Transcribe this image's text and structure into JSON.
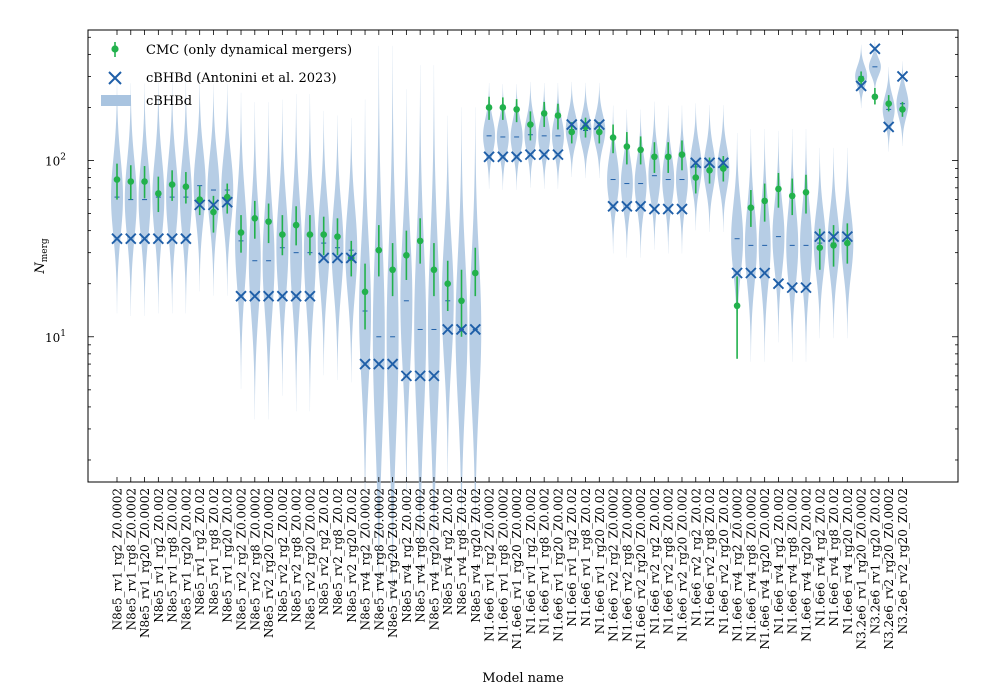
{
  "chart_data": {
    "type": "scatter",
    "xlabel": "Model name",
    "ylabel": "N",
    "ylabel_sub": "merg",
    "yscale": "log",
    "ylim": [
      1.5,
      550
    ],
    "yticks": [
      {
        "value": 10,
        "label": "10",
        "exp": "1"
      },
      {
        "value": 100,
        "label": "10",
        "exp": "2"
      }
    ],
    "legend": {
      "position": "top-left",
      "entries": [
        {
          "label": "CMC (only dynamical mergers)",
          "marker": "errorbar-dot",
          "color": "#22b14c"
        },
        {
          "label": "cBHBd (Antonini et al. 2023)",
          "marker": "x",
          "color": "#1f5fa8"
        },
        {
          "label": "cBHBd",
          "marker": "violin",
          "color": "#a9c4e0"
        }
      ]
    },
    "colors": {
      "cmc": "#22b14c",
      "cbhbd": "#1f5fa8",
      "violin": "#a9c4e0"
    },
    "categories": [
      "N8e5_rv1_rg2_Z0.0002",
      "N8e5_rv1_rg8_Z0.0002",
      "N8e5_rv1_rg20_Z0.0002",
      "N8e5_rv1_rg2_Z0.002",
      "N8e5_rv1_rg8_Z0.002",
      "N8e5_rv1_rg20_Z0.002",
      "N8e5_rv1_rg2_Z0.02",
      "N8e5_rv1_rg8_Z0.02",
      "N8e5_rv1_rg20_Z0.02",
      "N8e5_rv2_rg2_Z0.0002",
      "N8e5_rv2_rg8_Z0.0002",
      "N8e5_rv2_rg20_Z0.0002",
      "N8e5_rv2_rg2_Z0.002",
      "N8e5_rv2_rg8_Z0.002",
      "N8e5_rv2_rg20_Z0.002",
      "N8e5_rv2_rg2_Z0.02",
      "N8e5_rv2_rg8_Z0.02",
      "N8e5_rv2_rg20_Z0.02",
      "N8e5_rv4_rg2_Z0.0002",
      "N8e5_rv4_rg8_Z0.0002",
      "N8e5_rv4_rg20_Z0.0002",
      "N8e5_rv4_rg2_Z0.002",
      "N8e5_rv4_rg8_Z0.002",
      "N8e5_rv4_rg20_Z0.002",
      "N8e5_rv4_rg2_Z0.02",
      "N8e5_rv4_rg8_Z0.02",
      "N8e5_rv4_rg20_Z0.02",
      "N1.6e6_rv1_rg2_Z0.0002",
      "N1.6e6_rv1_rg8_Z0.0002",
      "N1.6e6_rv1_rg20_Z0.0002",
      "N1.6e6_rv1_rg2_Z0.002",
      "N1.6e6_rv1_rg8_Z0.002",
      "N1.6e6_rv1_rg20_Z0.002",
      "N1.6e6_rv1_rg2_Z0.02",
      "N1.6e6_rv1_rg8_Z0.02",
      "N1.6e6_rv1_rg20_Z0.02",
      "N1.6e6_rv2_rg2_Z0.0002",
      "N1.6e6_rv2_rg8_Z0.0002",
      "N1.6e6_rv2_rg20_Z0.0002",
      "N1.6e6_rv2_rg2_Z0.002",
      "N1.6e6_rv2_rg8_Z0.002",
      "N1.6e6_rv2_rg20_Z0.002",
      "N1.6e6_rv2_rg2_Z0.02",
      "N1.6e6_rv2_rg8_Z0.02",
      "N1.6e6_rv2_rg20_Z0.02",
      "N1.6e6_rv4_rg2_Z0.0002",
      "N1.6e6_rv4_rg8_Z0.0002",
      "N1.6e6_rv4_rg20_Z0.0002",
      "N1.6e6_rv4_rg2_Z0.002",
      "N1.6e6_rv4_rg8_Z0.002",
      "N1.6e6_rv4_rg20_Z0.002",
      "N1.6e6_rv4_rg2_Z0.02",
      "N1.6e6_rv4_rg8_Z0.02",
      "N1.6e6_rv4_rg20_Z0.02",
      "N3.2e6_rv1_rg20_Z0.0002",
      "N3.2e6_rv1_rg20_Z0.02",
      "N3.2e6_rv2_rg20_Z0.0002",
      "N3.2e6_rv2_rg20_Z0.02"
    ],
    "series": [
      {
        "name": "CMC (only dynamical mergers)",
        "values": [
          78,
          76,
          76,
          65,
          73,
          71,
          60,
          51,
          62,
          39,
          47,
          45,
          38,
          43,
          38,
          38,
          37,
          28,
          18,
          31,
          24,
          29,
          35,
          24,
          20,
          16,
          23,
          200,
          200,
          195,
          160,
          185,
          180,
          145,
          155,
          145,
          135,
          120,
          115,
          105,
          105,
          108,
          80,
          88,
          90,
          15,
          54,
          59,
          69,
          63,
          66,
          32,
          33,
          34,
          290,
          230,
          210,
          195
        ],
        "err_low": [
          18,
          16,
          15,
          14,
          14,
          14,
          11,
          12,
          12,
          9,
          11,
          11,
          9,
          10,
          9,
          9,
          8,
          6,
          7,
          9,
          7,
          8,
          9,
          7,
          6,
          6,
          6,
          30,
          30,
          30,
          30,
          30,
          30,
          20,
          20,
          20,
          25,
          25,
          20,
          20,
          20,
          20,
          15,
          14,
          14,
          7.5,
          12,
          14,
          15,
          14,
          16,
          8,
          8,
          8,
          22,
          22,
          20,
          18
        ],
        "err_high": [
          18,
          18,
          17,
          16,
          15,
          15,
          12,
          12,
          12,
          10,
          12,
          12,
          11,
          12,
          11,
          10,
          10,
          7,
          8,
          12,
          10,
          11,
          12,
          10,
          7,
          8,
          9,
          30,
          28,
          28,
          30,
          30,
          30,
          20,
          20,
          20,
          25,
          25,
          22,
          22,
          22,
          22,
          18,
          16,
          16,
          7,
          14,
          15,
          16,
          16,
          17,
          9,
          10,
          10,
          30,
          28,
          25,
          20
        ]
      },
      {
        "name": "cBHBd (Antonini et al. 2023)",
        "values": [
          36,
          36,
          36,
          36,
          36,
          36,
          56,
          56,
          58,
          17,
          17,
          17,
          17,
          17,
          17,
          28,
          28,
          28,
          7,
          7,
          7,
          6,
          6,
          6,
          11,
          11,
          11,
          105,
          105,
          105,
          108,
          108,
          108,
          160,
          160,
          160,
          55,
          55,
          55,
          53,
          53,
          53,
          97,
          97,
          97,
          23,
          23,
          23,
          20,
          19,
          19,
          37,
          37,
          37,
          265,
          430,
          155,
          300
        ]
      },
      {
        "name": "cBHBd",
        "median": [
          62,
          60,
          60,
          62,
          62,
          62,
          72,
          68,
          68,
          35,
          27,
          27,
          32,
          30,
          30,
          34,
          32,
          31,
          14,
          10,
          10,
          16,
          11,
          11,
          16,
          11,
          11,
          138,
          136,
          136,
          140,
          138,
          138,
          150,
          148,
          148,
          78,
          74,
          74,
          82,
          78,
          78,
          92,
          90,
          90,
          36,
          33,
          33,
          37,
          33,
          33,
          34,
          34,
          34,
          300,
          340,
          195,
          210
        ],
        "spread": [
          0.22,
          0.22,
          0.22,
          0.22,
          0.22,
          0.22,
          0.2,
          0.2,
          0.2,
          0.28,
          0.3,
          0.3,
          0.28,
          0.3,
          0.3,
          0.25,
          0.25,
          0.25,
          0.4,
          0.55,
          0.55,
          0.4,
          0.5,
          0.5,
          0.35,
          0.42,
          0.42,
          0.1,
          0.1,
          0.1,
          0.1,
          0.1,
          0.1,
          0.09,
          0.09,
          0.09,
          0.14,
          0.14,
          0.14,
          0.14,
          0.14,
          0.14,
          0.12,
          0.12,
          0.12,
          0.2,
          0.22,
          0.22,
          0.2,
          0.22,
          0.22,
          0.18,
          0.18,
          0.18,
          0.06,
          0.05,
          0.08,
          0.08
        ]
      }
    ]
  }
}
